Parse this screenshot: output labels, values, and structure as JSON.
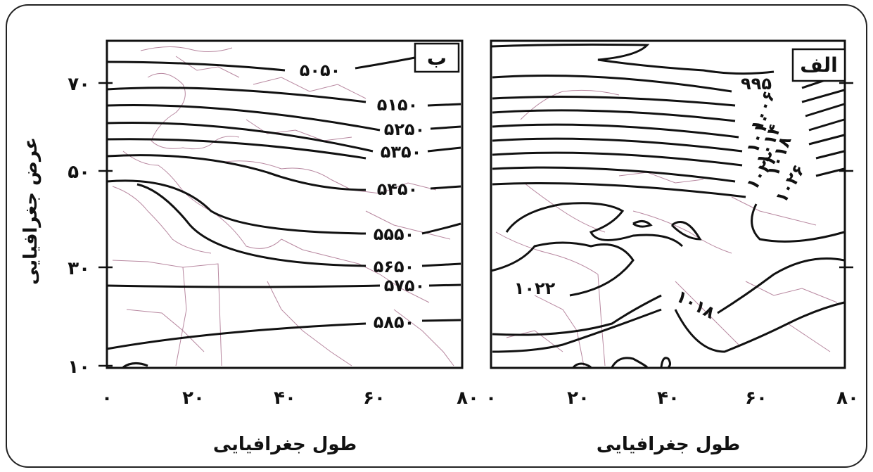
{
  "panels": {
    "left": {
      "tag": "ب",
      "xlabel": "طول جغرافیایی",
      "xticks": [
        "٠",
        "٢٠",
        "۴٠",
        "۶٠",
        "٨٠"
      ],
      "yticks": [
        "٧٠",
        "۵٠",
        "٣٠",
        "١٠"
      ],
      "contours": [
        "۵٠۵٠",
        "۵١۵٠",
        "۵٢۵٠",
        "۵٣۵٠",
        "۵۴۵٠",
        "۵۵۵٠",
        "۵۶۵٠",
        "۵٧۵٠",
        "۵٨۵٠"
      ]
    },
    "right": {
      "tag": "الف",
      "xlabel": "طول جغرافیایی",
      "xticks": [
        "٠",
        "٢٠",
        "۴٠",
        "۶٠",
        "٨٠"
      ],
      "contours_top": [
        "٩٩۵",
        "١٠٠۶",
        "١٠١٠",
        "١٠١۴",
        "١٠١٨",
        "١٠٢٢",
        "١٠٢۶"
      ],
      "contours_bottom": [
        "١٠٢٢",
        "١٠١٨"
      ]
    }
  },
  "ylabel": "عرض جغرافیایی",
  "colors": {
    "contour": "#111111",
    "borders": "#a06080",
    "frame": "#222222"
  }
}
